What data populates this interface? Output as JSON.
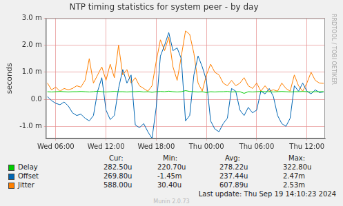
{
  "chart_data": {
    "type": "line",
    "title": "NTP timing statistics for system peer - by day",
    "ylabel": "seconds",
    "xlim": [
      4.83,
      38.17
    ],
    "xticks": [
      {
        "value": 6,
        "label": "Wed 06:00"
      },
      {
        "value": 12,
        "label": "Wed 12:00"
      },
      {
        "value": 18,
        "label": "Wed 18:00"
      },
      {
        "value": 24,
        "label": "Thu 00:00"
      },
      {
        "value": 30,
        "label": "Thu 06:00"
      },
      {
        "value": 36,
        "label": "Thu 12:00"
      }
    ],
    "ylim": [
      -0.00145,
      0.003
    ],
    "yticks": [
      {
        "value": -0.001,
        "label": "-1.0 m"
      },
      {
        "value": 0,
        "label": "0.0"
      },
      {
        "value": 0.001,
        "label": "1.0 m"
      },
      {
        "value": 0.002,
        "label": "2.0 m"
      },
      {
        "value": 0.003,
        "label": "3.0 m"
      }
    ],
    "grid": true,
    "x": [
      5.0,
      5.5,
      6.0,
      6.5,
      7.0,
      7.5,
      8.0,
      8.5,
      9.0,
      9.5,
      10.0,
      10.5,
      11.0,
      11.5,
      12.0,
      12.5,
      13.0,
      13.5,
      14.0,
      14.5,
      15.0,
      15.5,
      16.0,
      16.5,
      17.0,
      17.5,
      18.0,
      18.5,
      19.0,
      19.5,
      20.0,
      20.5,
      21.0,
      21.5,
      22.0,
      22.5,
      23.0,
      23.5,
      24.0,
      24.5,
      25.0,
      25.5,
      26.0,
      26.5,
      27.0,
      27.5,
      28.0,
      28.5,
      29.0,
      29.5,
      30.0,
      30.5,
      31.0,
      31.5,
      32.0,
      32.5,
      33.0,
      33.5,
      34.0,
      34.5,
      35.0,
      35.5,
      36.0,
      36.5,
      37.0,
      37.5,
      38.0
    ],
    "stat_headers": [
      "Cur:",
      "Min:",
      "Avg:",
      "Max:"
    ],
    "series": [
      {
        "name": "Delay",
        "color": "#00cc00",
        "stats": [
          "282.50u",
          "220.70u",
          "278.22u",
          "322.80u"
        ],
        "values": [
          0.00028,
          0.00027,
          0.00028,
          0.00029,
          0.00028,
          0.00027,
          0.00028,
          0.00028,
          0.00029,
          0.00028,
          0.00027,
          0.00028,
          0.0003,
          0.00028,
          0.00027,
          0.00028,
          0.00029,
          0.00028,
          0.00028,
          0.00027,
          0.00028,
          0.00028,
          0.00029,
          0.00027,
          0.00028,
          0.00026,
          0.00028,
          0.00029,
          0.00028,
          0.0003,
          0.00028,
          0.00027,
          0.00028,
          0.00032,
          0.00029,
          0.00028,
          0.00027,
          0.00028,
          0.00025,
          0.00028,
          0.00027,
          0.00028,
          0.00028,
          0.00029,
          0.00027,
          0.00028,
          0.00028,
          0.00022,
          0.00028,
          0.00027,
          0.00028,
          0.00029,
          0.00028,
          0.00028,
          0.00027,
          0.00028,
          0.00029,
          0.00028,
          0.00027,
          0.00028,
          0.00028,
          0.00029,
          0.00028,
          0.00027,
          0.00028,
          0.00028,
          0.0002825
        ]
      },
      {
        "name": "Offset",
        "color": "#0066b3",
        "stats": [
          "269.80u",
          "-1.45m",
          "237.44u",
          "2.47m"
        ],
        "values": [
          0.0001,
          -5e-05,
          -0.00015,
          -0.0002,
          -0.0001,
          -0.00025,
          -0.0005,
          -0.0006,
          -0.00055,
          -0.0007,
          -0.0008,
          -0.0006,
          0.0003,
          0.0008,
          -0.0004,
          -0.00075,
          -0.0006,
          0.0004,
          0.0011,
          0.0006,
          0.0009,
          -0.00095,
          -0.00105,
          -0.0009,
          -0.0012,
          -0.00145,
          -0.0003,
          0.0016,
          0.002,
          0.00247,
          0.0018,
          0.0019,
          0.0015,
          -0.0008,
          -0.0006,
          0.0009,
          0.0016,
          0.0012,
          0.0007,
          -0.0008,
          -0.0011,
          -0.0012,
          -0.0009,
          -0.0007,
          0.0004,
          0.0003,
          -0.0004,
          -0.0006,
          -0.0003,
          -0.0005,
          -0.0004,
          0.0003,
          0.0002,
          0.0004,
          0.0001,
          -0.0006,
          -0.0009,
          -0.001,
          -0.0007,
          0.0005,
          0.0003,
          0.0006,
          0.0003,
          0.0002,
          0.00035,
          0.00025,
          0.0002698
        ]
      },
      {
        "name": "Jitter",
        "color": "#ff8000",
        "stats": [
          "588.00u",
          "30.40u",
          "607.89u",
          "2.53m"
        ],
        "values": [
          0.0006,
          0.00035,
          0.00045,
          0.0003,
          0.0004,
          0.00035,
          0.0004,
          0.0005,
          0.00045,
          0.0007,
          0.0015,
          0.0006,
          0.0009,
          0.0012,
          0.0007,
          0.0013,
          0.0008,
          0.002,
          0.0009,
          0.0011,
          0.0006,
          0.0008,
          0.0005,
          0.0004,
          0.0003,
          0.0005,
          0.0014,
          0.0022,
          0.0018,
          0.0023,
          0.0012,
          0.0007,
          0.0016,
          0.00253,
          0.0024,
          0.0017,
          0.0006,
          0.0003,
          0.0009,
          0.0013,
          0.001,
          0.0009,
          0.0006,
          0.0005,
          0.0007,
          0.0005,
          0.0006,
          0.0008,
          0.0005,
          0.0004,
          0.0006,
          0.0003,
          0.0005,
          0.0003,
          0.00035,
          0.0003,
          0.0006,
          0.0004,
          0.0003,
          0.0009,
          0.0005,
          0.0003,
          0.0006,
          0.001,
          0.0007,
          0.0006,
          0.000588
        ]
      }
    ],
    "last_update": "Last update: Thu Sep 19 14:10:23 2024",
    "watermark": "RRDTOOL / TOBI OETIKER",
    "footer": "Munin 2.0.73"
  }
}
